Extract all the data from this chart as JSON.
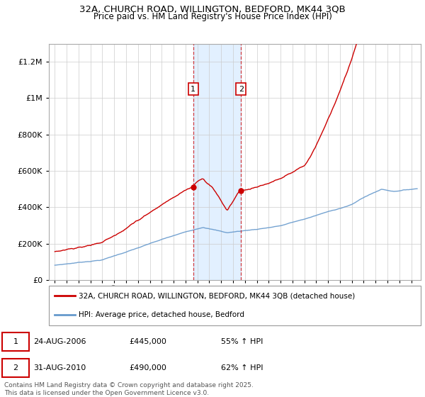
{
  "title": "32A, CHURCH ROAD, WILLINGTON, BEDFORD, MK44 3QB",
  "subtitle": "Price paid vs. HM Land Registry's House Price Index (HPI)",
  "red_line_label": "32A, CHURCH ROAD, WILLINGTON, BEDFORD, MK44 3QB (detached house)",
  "blue_line_label": "HPI: Average price, detached house, Bedford",
  "red_color": "#cc0000",
  "blue_color": "#6699cc",
  "marker1_year": 2006.65,
  "marker2_year": 2010.67,
  "marker1_date": "24-AUG-2006",
  "marker1_price": "£445,000",
  "marker1_pct": "55% ↑ HPI",
  "marker2_date": "31-AUG-2010",
  "marker2_price": "£490,000",
  "marker2_pct": "62% ↑ HPI",
  "footer": "Contains HM Land Registry data © Crown copyright and database right 2025.\nThis data is licensed under the Open Government Licence v3.0.",
  "ylim_max": 1300000,
  "background_shading_color": "#ddeeff",
  "grid_color": "#cccccc",
  "spine_color": "#aaaaaa"
}
